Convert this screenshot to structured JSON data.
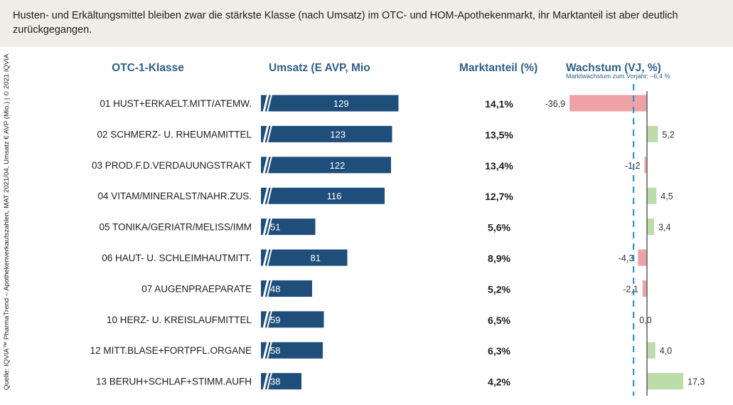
{
  "header": {
    "text": "Husten- und Erkältungsmittel bleiben zwar die stärkste Klasse (nach Umsatz) im OTC- und HOM-Apothekenmarkt, ihr Marktanteil ist aber deutlich zurückgegangen."
  },
  "source": "Quelle: IQVIA™ PharmaTrend – Apothekenverkaufszahlen, MAT 2021/04, Umsatz € AVP (Mio.) | © 2021 IQVIA",
  "chart_data": {
    "type": "table",
    "columns": {
      "class": "OTC-1-Klasse",
      "sales": "Umsatz (E AVP, Mio",
      "share": "Marktanteil (%)",
      "growth": "Wachstum (VJ, %)"
    },
    "reference_note": "Marktwachstum zum Vorjahr: –6,4 %",
    "reference_value": -6.4,
    "colors": {
      "sales_bar": "#1f4e7a",
      "positive_growth": "#bcdcaa",
      "negative_growth": "#eda2a6",
      "reference_line": "#2a93d5"
    },
    "rows": [
      {
        "label": "01 HUST+ERKAELT.MITT/ATEMW.",
        "sales": 129,
        "share": "14,1%",
        "growth": -36.9,
        "growth_label": "-36,9"
      },
      {
        "label": "02 SCHMERZ- U. RHEUMAMITTEL",
        "sales": 123,
        "share": "13,5%",
        "growth": 5.2,
        "growth_label": "5,2"
      },
      {
        "label": "03 PROD.F.D.VERDAUUNGSTRAKT",
        "sales": 122,
        "share": "13,4%",
        "growth": -1.2,
        "growth_label": "-1,2"
      },
      {
        "label": "04 VITAM/MINERALST/NAHR.ZUS.",
        "sales": 116,
        "share": "12,7%",
        "growth": 4.5,
        "growth_label": "4,5"
      },
      {
        "label": "05 TONIKA/GERIATR/MELISS/IMM",
        "sales": 51,
        "share": "5,6%",
        "growth": 3.4,
        "growth_label": "3,4"
      },
      {
        "label": "06 HAUT- U. SCHLEIMHAUTMITT.",
        "sales": 81,
        "share": "8,9%",
        "growth": -4.3,
        "growth_label": "-4,3"
      },
      {
        "label": "07 AUGENPRAEPARATE",
        "sales": 48,
        "share": "5,2%",
        "growth": -2.1,
        "growth_label": "-2,1"
      },
      {
        "label": "10 HERZ- U. KREISLAUFMITTEL",
        "sales": 59,
        "share": "6,5%",
        "growth": 0.0,
        "growth_label": "0,0"
      },
      {
        "label": "12 MITT.BLASE+FORTPFL.ORGANE",
        "sales": 58,
        "share": "6,3%",
        "growth": 4.0,
        "growth_label": "4,0"
      },
      {
        "label": "13 BERUH+SCHLAF+STIMM.AUFH",
        "sales": 38,
        "share": "4,2%",
        "growth": 17.3,
        "growth_label": "17,3"
      }
    ]
  }
}
